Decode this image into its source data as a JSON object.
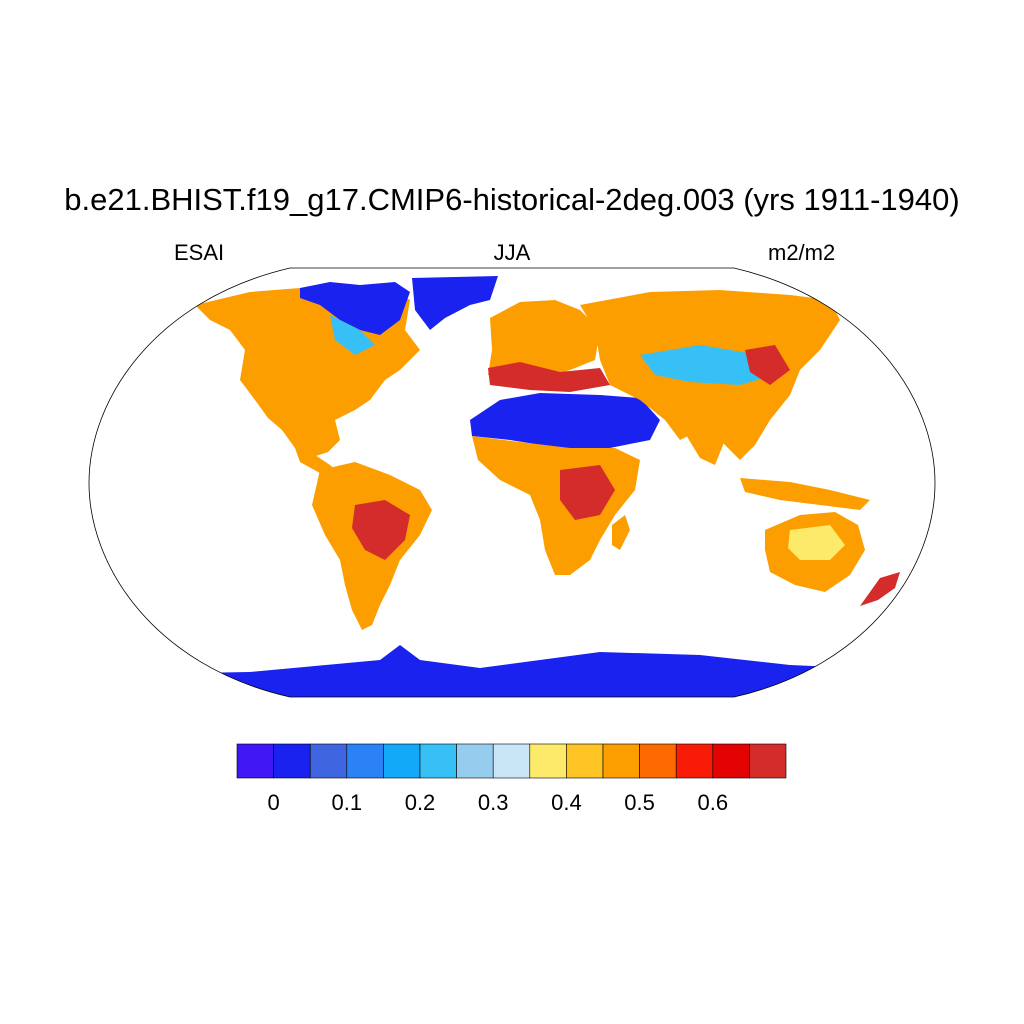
{
  "title": "b.e21.BHIST.f19_g17.CMIP6-historical-2deg.003 (yrs 1911-1940)",
  "left_label": "ESAI",
  "center_label": "JJA",
  "right_label": "m2/m2",
  "colorbar": {
    "colors": [
      "#4016f5",
      "#1a22f0",
      "#3f66e0",
      "#2b82f5",
      "#12aaf8",
      "#36c0f5",
      "#96cdef",
      "#c9e6f7",
      "#fde96a",
      "#fec423",
      "#fd9e00",
      "#fd6a00",
      "#f81c06",
      "#e30303",
      "#d42b2b"
    ],
    "tick_labels": [
      "0",
      "0.1",
      "0.2",
      "0.3",
      "0.4",
      "0.5",
      "0.6"
    ]
  },
  "map_colors": {
    "ocean": "#ffffff",
    "ice": "#1a22f0",
    "orange": "#fd9e00",
    "red": "#d42b2b",
    "yellow": "#fde96a",
    "light_blue": "#36c0f5"
  }
}
